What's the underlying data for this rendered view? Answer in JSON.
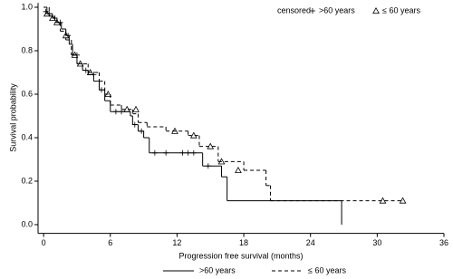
{
  "chart_data": {
    "type": "km",
    "x_label": "Progression free survival (months)",
    "y_label": "Survival probability",
    "censor_legend_title": "censored",
    "xlim": [
      -0.5,
      36
    ],
    "ylim": [
      -0.04,
      1.02
    ],
    "xticks": [
      0,
      6,
      12,
      18,
      24,
      30,
      36
    ],
    "yticks": [
      {
        "value": 0,
        "label": "0.0"
      },
      {
        "value": 0.2,
        "label": "0.2"
      },
      {
        "value": 0.4,
        "label": "0.4"
      },
      {
        "value": 0.6,
        "label": "0.6"
      },
      {
        "value": 0.8,
        "label": "0.8"
      },
      {
        "value": 1,
        "label": "1.0"
      }
    ],
    "series": [
      {
        "name": ">60 years",
        "color": "#000000",
        "dash": false,
        "marker": "plus",
        "x": [
          0,
          0.3,
          0.8,
          1.2,
          1.6,
          2.0,
          2.3,
          2.6,
          3.0,
          3.5,
          4.0,
          4.5,
          5.0,
          5.5,
          6.0,
          7.8,
          8.0,
          8.5,
          9.0,
          9.5,
          14.3,
          16.0,
          16.5,
          26.8
        ],
        "values": [
          1.0,
          0.97,
          0.95,
          0.93,
          0.9,
          0.87,
          0.83,
          0.78,
          0.74,
          0.71,
          0.69,
          0.66,
          0.62,
          0.57,
          0.52,
          0.5,
          0.46,
          0.43,
          0.4,
          0.33,
          0.27,
          0.22,
          0.11,
          0.0
        ],
        "censored_x": [
          0.2,
          0.5,
          1.0,
          1.5,
          2.2,
          3.0,
          3.8,
          4.5,
          5.2,
          6.5,
          7.0,
          8.2,
          8.8,
          10.0,
          11.0,
          12.5,
          13.0,
          13.5,
          14.8
        ],
        "censored_values": [
          0.98,
          0.97,
          0.95,
          0.93,
          0.87,
          0.78,
          0.71,
          0.69,
          0.62,
          0.52,
          0.52,
          0.46,
          0.43,
          0.33,
          0.33,
          0.33,
          0.33,
          0.33,
          0.27
        ]
      },
      {
        "name": "≤ 60 years",
        "color": "#000000",
        "dash": true,
        "marker": "triangle",
        "x": [
          0,
          0.5,
          1.0,
          1.5,
          2.0,
          2.5,
          3.0,
          4.0,
          5.0,
          5.5,
          6.0,
          7.0,
          8.0,
          8.5,
          9.3,
          11.0,
          13.0,
          14.0,
          15.7,
          18.0,
          20.0,
          20.4,
          32.3
        ],
        "values": [
          1.0,
          0.96,
          0.93,
          0.89,
          0.85,
          0.78,
          0.74,
          0.7,
          0.66,
          0.6,
          0.55,
          0.53,
          0.51,
          0.47,
          0.45,
          0.43,
          0.41,
          0.36,
          0.29,
          0.25,
          0.18,
          0.11,
          0.11
        ],
        "censored_x": [
          0.3,
          0.8,
          1.2,
          2.0,
          2.8,
          3.3,
          4.2,
          5.8,
          7.5,
          8.3,
          11.8,
          13.5,
          15.0,
          16.0,
          17.5,
          30.5,
          32.3
        ],
        "censored_values": [
          0.97,
          0.95,
          0.93,
          0.87,
          0.78,
          0.74,
          0.7,
          0.6,
          0.53,
          0.53,
          0.43,
          0.41,
          0.36,
          0.29,
          0.25,
          0.11,
          0.11
        ]
      }
    ]
  }
}
